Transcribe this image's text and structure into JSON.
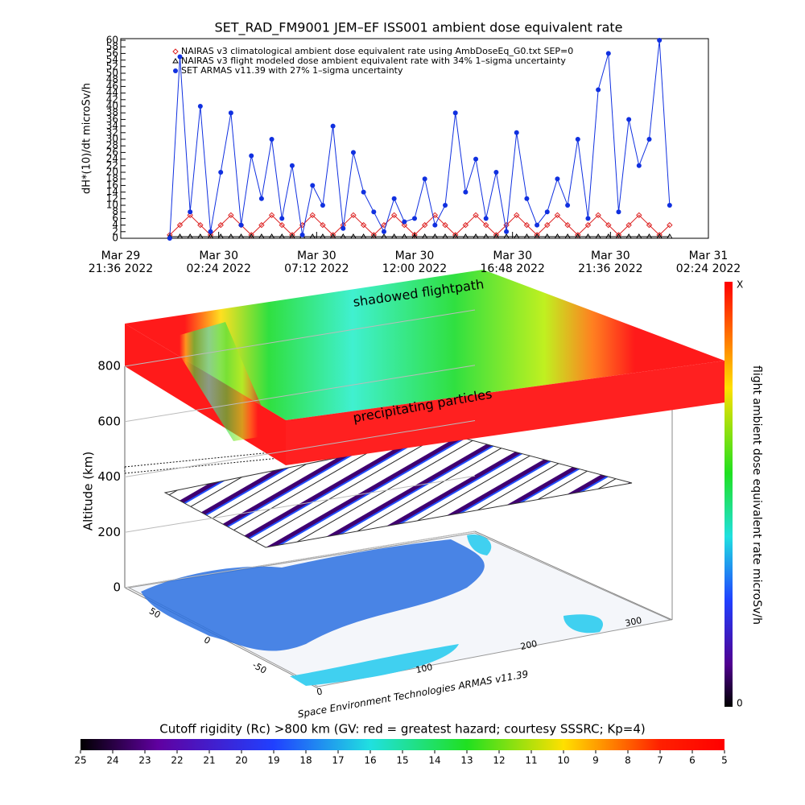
{
  "chart_data": {
    "type": "line",
    "title": "SET_RAD_FM9001  JEM–EF ISS001 ambient dose equivalent rate",
    "y_label": "dH*(10)/dt microSv/h",
    "xlim": [
      "2022-03-29T21:36",
      "2022-03-31T02:24"
    ],
    "xticks": [
      {
        "value": "2022-03-29T21:36",
        "label": "Mar 29\n21:36 2022"
      },
      {
        "value": "2022-03-30T02:24",
        "label": "Mar 30\n02:24 2022"
      },
      {
        "value": "2022-03-30T07:12",
        "label": "Mar 30\n07:12 2022"
      },
      {
        "value": "2022-03-30T12:00",
        "label": "Mar 30\n12:00 2022"
      },
      {
        "value": "2022-03-30T16:48",
        "label": "Mar 30\n16:48 2022"
      },
      {
        "value": "2022-03-30T21:36",
        "label": "Mar 30\n21:36 2022"
      },
      {
        "value": "2022-03-31T02:24",
        "label": "Mar 31\n02:24 2022"
      }
    ],
    "ylim": [
      0,
      60
    ],
    "yticks": [
      0,
      2,
      4,
      6,
      8,
      10,
      12,
      14,
      16,
      18,
      20,
      22,
      24,
      26,
      28,
      30,
      32,
      34,
      36,
      38,
      40,
      42,
      44,
      46,
      48,
      50,
      52,
      54,
      56,
      58,
      60
    ],
    "x": [
      "2022-03-30T00:00",
      "2022-03-30T00:30",
      "2022-03-30T01:00",
      "2022-03-30T01:30",
      "2022-03-30T02:00",
      "2022-03-30T02:30",
      "2022-03-30T03:00",
      "2022-03-30T03:30",
      "2022-03-30T04:00",
      "2022-03-30T04:30",
      "2022-03-30T05:00",
      "2022-03-30T05:30",
      "2022-03-30T06:00",
      "2022-03-30T06:30",
      "2022-03-30T07:00",
      "2022-03-30T07:30",
      "2022-03-30T08:00",
      "2022-03-30T08:30",
      "2022-03-30T09:00",
      "2022-03-30T09:30",
      "2022-03-30T10:00",
      "2022-03-30T10:30",
      "2022-03-30T11:00",
      "2022-03-30T11:30",
      "2022-03-30T12:00",
      "2022-03-30T12:30",
      "2022-03-30T13:00",
      "2022-03-30T13:30",
      "2022-03-30T14:00",
      "2022-03-30T14:30",
      "2022-03-30T15:00",
      "2022-03-30T15:30",
      "2022-03-30T16:00",
      "2022-03-30T16:30",
      "2022-03-30T17:00",
      "2022-03-30T17:30",
      "2022-03-30T18:00",
      "2022-03-30T18:30",
      "2022-03-30T19:00",
      "2022-03-30T19:30",
      "2022-03-30T20:00",
      "2022-03-30T20:30",
      "2022-03-30T21:00",
      "2022-03-30T21:30",
      "2022-03-30T22:00",
      "2022-03-30T22:30",
      "2022-03-30T23:00",
      "2022-03-30T23:30",
      "2022-03-31T00:00",
      "2022-03-31T00:30"
    ],
    "series": [
      {
        "name": "NAIRAS v3 climatological ambient dose equivalent rate using AmbDoseEq_G0.txt SEP=0",
        "color": "#dd2222",
        "marker": "diamond",
        "values": [
          1,
          4,
          7,
          4,
          1,
          4,
          7,
          4,
          1,
          4,
          7,
          4,
          1,
          4,
          7,
          4,
          1,
          4,
          7,
          4,
          1,
          4,
          7,
          4,
          1,
          4,
          7,
          4,
          1,
          4,
          7,
          4,
          1,
          4,
          7,
          4,
          1,
          4,
          7,
          4,
          1,
          4,
          7,
          4,
          1,
          4,
          7,
          4,
          1,
          4
        ]
      },
      {
        "name": "NAIRAS v3 flight modeled dose ambient equivalent rate with 34% 1–sigma uncertainty",
        "color": "#000000",
        "marker": "triangle",
        "values": [
          0.5,
          0.5,
          0.5,
          0.5,
          0.5,
          0.5,
          0.5,
          0.5,
          0.5,
          0.5,
          0.5,
          0.5,
          0.5,
          0.5,
          0.5,
          0.5,
          0.5,
          0.5,
          0.5,
          0.5,
          0.5,
          0.5,
          0.5,
          0.5,
          0.5,
          0.5,
          0.5,
          0.5,
          0.5,
          0.5,
          0.5,
          0.5,
          0.5,
          0.5,
          0.5,
          0.5,
          0.5,
          0.5,
          0.5,
          0.5,
          0.5,
          0.5,
          0.5,
          0.5,
          0.5,
          0.5,
          0.5,
          0.5,
          0.5,
          0.5
        ]
      },
      {
        "name": "SET ARMAS v11.39 with 27% 1–sigma uncertainty",
        "color": "#1030e0",
        "marker": "circle",
        "values": [
          0,
          55,
          8,
          40,
          2,
          20,
          38,
          4,
          25,
          12,
          30,
          6,
          22,
          1,
          16,
          10,
          34,
          3,
          26,
          14,
          8,
          2,
          12,
          5,
          6,
          18,
          4,
          10,
          38,
          14,
          24,
          6,
          20,
          2,
          32,
          12,
          4,
          8,
          18,
          10,
          30,
          6,
          45,
          56,
          8,
          36,
          22,
          30,
          60,
          10
        ]
      }
    ]
  },
  "scene": {
    "top_label": "shadowed flightpath",
    "slab_label": "precipitating particles",
    "altitude_label": "Altitude (km)",
    "altitude_ticks": [
      0,
      200,
      400,
      600,
      800
    ],
    "longitude_ticks": [
      0,
      100,
      200,
      300
    ],
    "latitude_ticks": [
      50,
      0,
      -50
    ],
    "credit": "Space Environment Technologies ARMAS v11.39"
  },
  "dose_colorbar": {
    "label": "flight ambient dose equivalent rate microSv/h",
    "max_label": "X",
    "min_label": "0"
  },
  "rigidity_colorbar": {
    "title": "Cutoff rigidity (Rc) >800 km (GV: red = greatest hazard; courtesy SSSRC; Kp=4)",
    "ticks": [
      25,
      24,
      23,
      22,
      21,
      20,
      19,
      18,
      17,
      16,
      15,
      14,
      13,
      12,
      11,
      10,
      9,
      8,
      7,
      6,
      5
    ]
  }
}
